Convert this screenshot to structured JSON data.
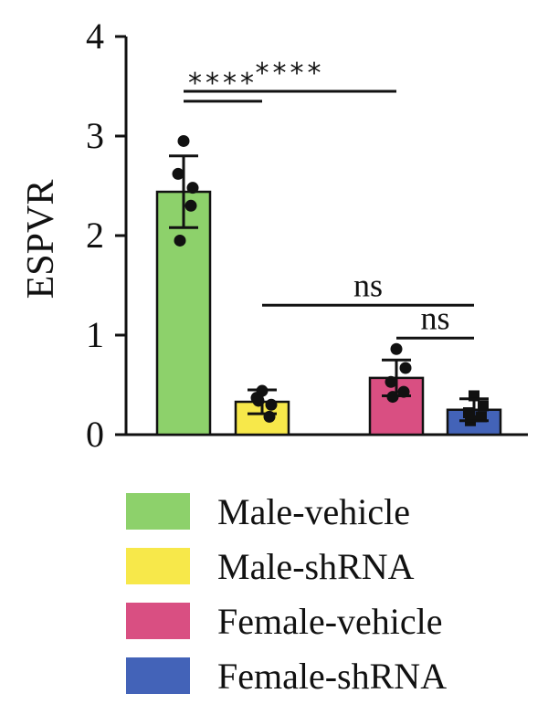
{
  "chart_data": {
    "type": "bar",
    "ylabel": "ESPVR",
    "xlabel": "",
    "title": "",
    "ylim": [
      0,
      4
    ],
    "yticks": [
      "0",
      "1",
      "2",
      "3",
      "4"
    ],
    "categories": [
      "Male-vehicle",
      "Male-shRNA",
      "Female-vehicle",
      "Female-shRNA"
    ],
    "series": [
      {
        "name": "Male-vehicle",
        "color": "#8dd16b",
        "value": 2.44,
        "error": 0.36,
        "points": [
          2.95,
          2.48,
          2.62,
          2.3,
          1.95
        ],
        "marker": "circle"
      },
      {
        "name": "Male-shRNA",
        "color": "#f7e84a",
        "value": 0.33,
        "error": 0.12,
        "points": [
          0.44,
          0.3,
          0.37,
          0.18,
          0.34
        ],
        "marker": "circle"
      },
      {
        "name": "Female-vehicle",
        "color": "#d94f82",
        "value": 0.57,
        "error": 0.18,
        "points": [
          0.86,
          0.67,
          0.53,
          0.43,
          0.38
        ],
        "marker": "circle"
      },
      {
        "name": "Female-shRNA",
        "color": "#4363b8",
        "value": 0.25,
        "error": 0.11,
        "points": [
          0.39,
          0.29,
          0.22,
          0.18,
          0.14
        ],
        "marker": "square"
      }
    ],
    "annotations": [
      {
        "text": "****",
        "from": 0,
        "to": 1,
        "y": 3.35,
        "kind": "stars"
      },
      {
        "text": "****",
        "from": 0,
        "to": 2,
        "y": 3.45,
        "kind": "stars"
      },
      {
        "text": "ns",
        "from": 1,
        "to": 3,
        "y": 1.3,
        "kind": "text"
      },
      {
        "text": "ns",
        "from": 2,
        "to": 3,
        "y": 0.97,
        "kind": "text"
      }
    ],
    "legend": {
      "position": "bottom"
    },
    "grid": false
  }
}
